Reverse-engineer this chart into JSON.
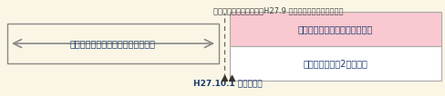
{
  "bg_color": "#faf5e4",
  "arrow_color": "#888888",
  "arrow_text": "一元化前の加入者（被保険者）期間",
  "arrow_text_color": "#1a3a6e",
  "box1_color": "#f9c8d0",
  "box1_text": "経過的職域加算額（３階相当）",
  "box1_text_color": "#1a3a6e",
  "box2_color": "#ffffff",
  "box2_text": "厚生年金給付（2階相当）",
  "box2_text_color": "#1a3a6e",
  "note_text": "（経過的職域加算額は、H27.9 までの期間に対してのみ）",
  "note_text_color": "#444444",
  "date_text": "H27.10.1 受給権発生",
  "date_text_color": "#1a3a6e",
  "box_outline_color": "#aaaaaa",
  "dashed_color": "#666666",
  "triangle_color": "#333333"
}
